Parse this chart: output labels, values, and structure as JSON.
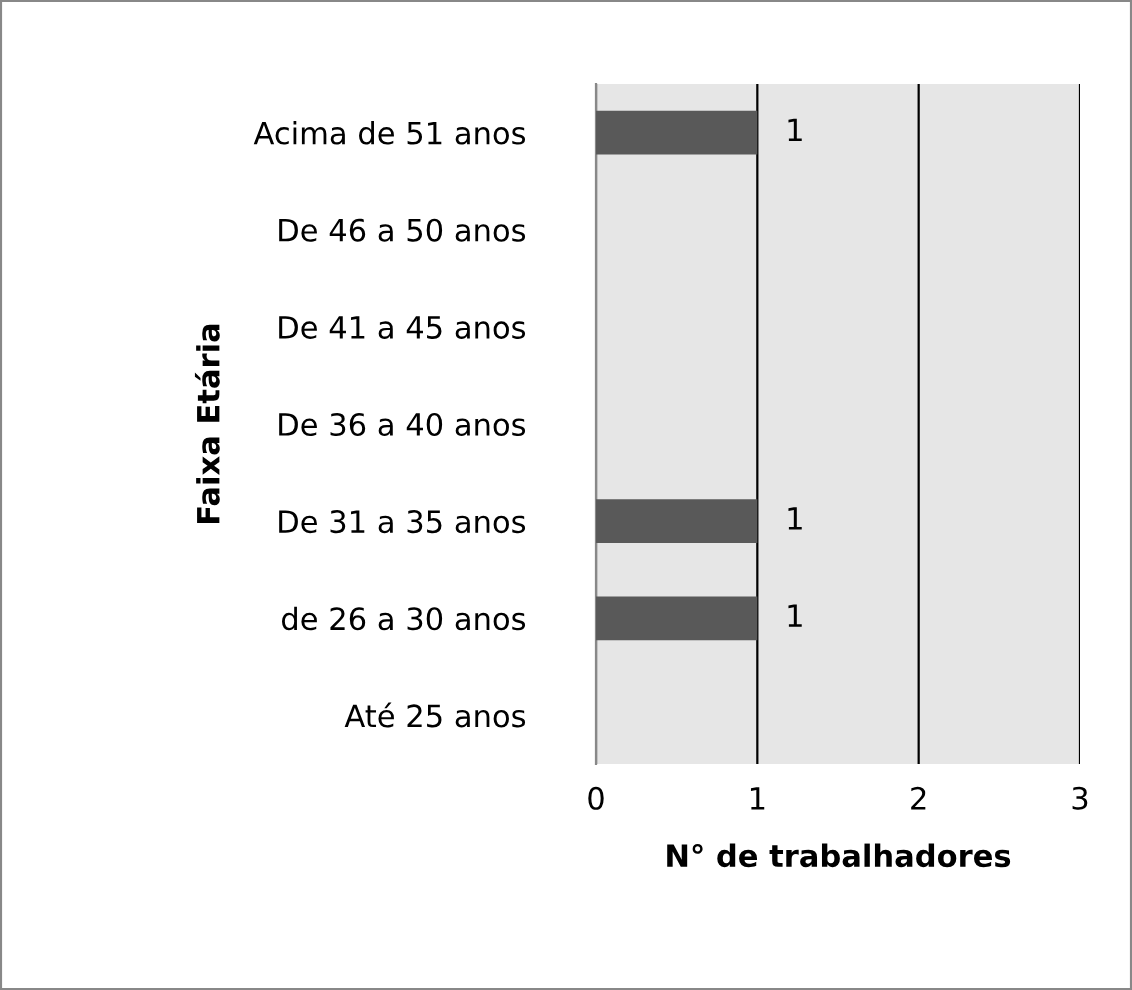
{
  "chart_data": {
    "type": "bar",
    "orientation": "horizontal",
    "xlabel": "N° de trabalhadores",
    "ylabel": "Faixa Etária",
    "categories": [
      "Acima de 51 anos",
      "De 46 a 50 anos",
      "De 41 a 45 anos",
      "De 36 a 40 anos",
      "De 31 a 35 anos",
      "de 26 a 30 anos",
      "Até 25 anos"
    ],
    "values": [
      1,
      0,
      0,
      0,
      1,
      1,
      0
    ],
    "value_labels": [
      "1",
      null,
      null,
      null,
      "1",
      "1",
      null
    ],
    "color": "#595959",
    "xlim": [
      0,
      3
    ],
    "xticks": [
      0,
      1,
      2,
      3
    ],
    "grid": "x"
  }
}
